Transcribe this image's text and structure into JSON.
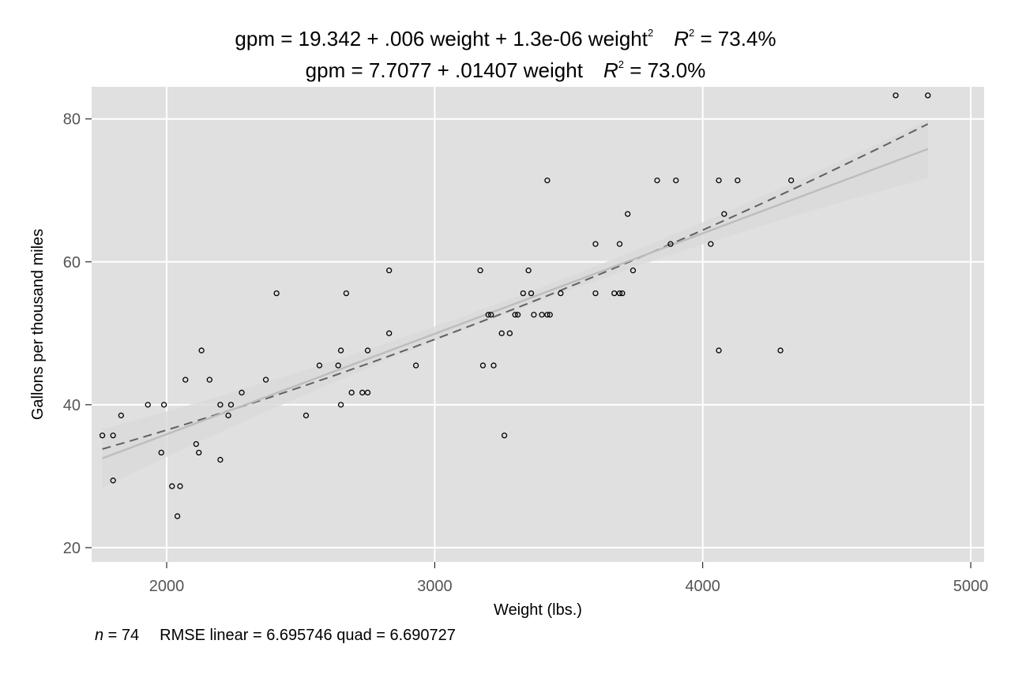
{
  "chart_data": {
    "type": "scatter",
    "title_lines": [
      {
        "equation": "gpm = 19.342 + .006 weight + 1.3e-06 weight",
        "superscript": "2",
        "r2_symbol": "R",
        "r2_superscript": "2",
        "r2_value": " = 73.4%"
      },
      {
        "equation": "gpm = 7.7077 + .01407 weight",
        "superscript": "",
        "r2_symbol": "R",
        "r2_superscript": "2",
        "r2_value": " = 73.0%"
      }
    ],
    "xlabel": "Weight (lbs.)",
    "ylabel": "Gallons per thousand miles",
    "xlim": [
      1720,
      5050
    ],
    "ylim": [
      18,
      84.5
    ],
    "xticks": [
      2000,
      3000,
      4000,
      5000
    ],
    "yticks": [
      20,
      40,
      60,
      80
    ],
    "grid": true,
    "background": "#e0e0e0",
    "gridline_color": "#ffffff",
    "footer": {
      "n_symbol": "n",
      "n_value": " = 74",
      "rmse_text": "RMSE linear =  6.695746 quad =  6.690727"
    },
    "series": [
      {
        "kind": "points",
        "marker": "hollow-circle",
        "color": "#000000",
        "points": [
          [
            1760,
            35.7
          ],
          [
            1800,
            35.7
          ],
          [
            1800,
            29.4
          ],
          [
            1830,
            38.5
          ],
          [
            1930,
            40.0
          ],
          [
            1980,
            33.3
          ],
          [
            1990,
            40.0
          ],
          [
            2020,
            28.6
          ],
          [
            2040,
            24.4
          ],
          [
            2050,
            28.6
          ],
          [
            2070,
            43.5
          ],
          [
            2110,
            34.5
          ],
          [
            2120,
            33.3
          ],
          [
            2130,
            47.6
          ],
          [
            2160,
            43.5
          ],
          [
            2200,
            32.3
          ],
          [
            2200,
            40.0
          ],
          [
            2230,
            38.5
          ],
          [
            2240,
            40.0
          ],
          [
            2280,
            41.7
          ],
          [
            2370,
            43.5
          ],
          [
            2410,
            55.6
          ],
          [
            2520,
            38.5
          ],
          [
            2570,
            45.5
          ],
          [
            2640,
            45.5
          ],
          [
            2650,
            47.6
          ],
          [
            2650,
            40.0
          ],
          [
            2670,
            55.6
          ],
          [
            2690,
            41.7
          ],
          [
            2730,
            41.7
          ],
          [
            2750,
            41.7
          ],
          [
            2750,
            47.6
          ],
          [
            2830,
            58.8
          ],
          [
            2830,
            50.0
          ],
          [
            2930,
            45.5
          ],
          [
            3170,
            58.8
          ],
          [
            3180,
            45.5
          ],
          [
            3200,
            52.6
          ],
          [
            3210,
            52.6
          ],
          [
            3220,
            45.5
          ],
          [
            3250,
            50.0
          ],
          [
            3260,
            35.7
          ],
          [
            3280,
            50.0
          ],
          [
            3300,
            52.6
          ],
          [
            3310,
            52.6
          ],
          [
            3330,
            55.6
          ],
          [
            3350,
            58.8
          ],
          [
            3360,
            55.6
          ],
          [
            3370,
            52.6
          ],
          [
            3400,
            52.6
          ],
          [
            3420,
            71.4
          ],
          [
            3420,
            52.6
          ],
          [
            3430,
            52.6
          ],
          [
            3470,
            55.6
          ],
          [
            3600,
            62.5
          ],
          [
            3600,
            55.6
          ],
          [
            3670,
            55.6
          ],
          [
            3690,
            62.5
          ],
          [
            3690,
            55.6
          ],
          [
            3700,
            55.6
          ],
          [
            3720,
            66.7
          ],
          [
            3740,
            58.8
          ],
          [
            3830,
            71.4
          ],
          [
            3880,
            62.5
          ],
          [
            3900,
            71.4
          ],
          [
            4030,
            62.5
          ],
          [
            4060,
            71.4
          ],
          [
            4060,
            47.6
          ],
          [
            4080,
            66.7
          ],
          [
            4130,
            71.4
          ],
          [
            4290,
            47.6
          ],
          [
            4330,
            71.4
          ],
          [
            4720,
            83.3
          ],
          [
            4840,
            83.3
          ]
        ]
      },
      {
        "kind": "quadratic-fit",
        "style": "dashed",
        "color": "#606060",
        "x_range": [
          1760,
          4840
        ],
        "y_values": [
          33.8,
          79.3
        ]
      },
      {
        "kind": "linear-fit",
        "style": "solid",
        "color": "#bdbdbd",
        "x_range": [
          1760,
          4840
        ],
        "y_values": [
          32.5,
          75.8
        ]
      }
    ]
  }
}
